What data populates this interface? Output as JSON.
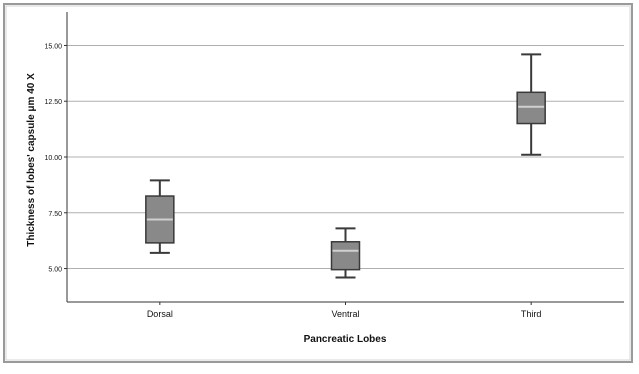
{
  "chart_data": {
    "type": "boxplot",
    "title": "",
    "xlabel": "Pancreatic Lobes",
    "ylabel": "Thickness of lobes' capsule μm 40 X",
    "ylim": [
      3.5,
      16.5
    ],
    "yticks": [
      5.0,
      7.5,
      10.0,
      12.5,
      15.0
    ],
    "ytick_labels": [
      "5.00",
      "7.50",
      "10.00",
      "12.50",
      "15.00"
    ],
    "grid": "horizontal",
    "categories": [
      "Dorsal",
      "Ventral",
      "Third"
    ],
    "boxes": [
      {
        "min": 5.7,
        "q1": 6.15,
        "median": 7.2,
        "q3": 8.25,
        "max": 8.95
      },
      {
        "min": 4.6,
        "q1": 4.95,
        "median": 5.8,
        "q3": 6.2,
        "max": 6.8
      },
      {
        "min": 10.1,
        "q1": 11.5,
        "median": 12.25,
        "q3": 12.9,
        "max": 14.6
      }
    ],
    "colors": {
      "box_fill": "#898989",
      "box_stroke": "#3a3a3a",
      "median": "#d0d0d0",
      "grid": "#b0b0b0",
      "axis": "#333333",
      "text": "#111111",
      "frame": "#9a9a9a"
    }
  }
}
